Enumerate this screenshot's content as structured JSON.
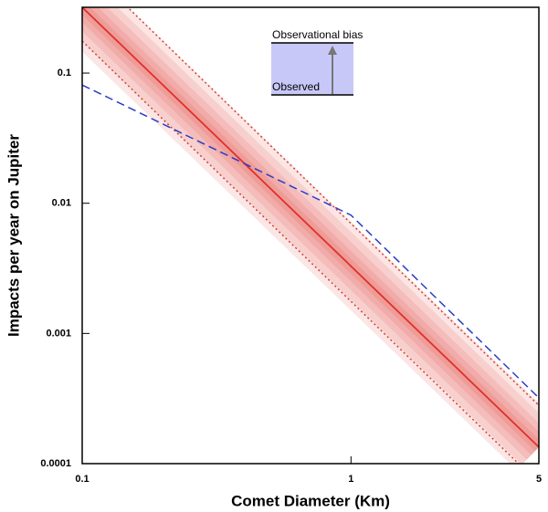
{
  "chart_data": {
    "type": "line",
    "x_label": "Comet Diameter (Km)",
    "y_label": "Impacts per year on Jupiter",
    "log_x": true,
    "log_y": true,
    "xlim": [
      0.1,
      5
    ],
    "xticks": [
      0.1,
      1,
      5
    ],
    "ylim": [
      0.0001,
      0.32
    ],
    "yticks": [
      0.0001,
      0.001,
      0.01,
      0.1
    ],
    "series": [
      {
        "color": "#e0302a",
        "style": "solid",
        "shaded": true,
        "x": [
          0.1,
          5
        ],
        "values": [
          0.32,
          0.000134
        ]
      },
      {
        "color": "#d04030",
        "style": "dotted",
        "x": [
          0.15,
          5
        ],
        "values": [
          0.31,
          0.00028
        ]
      },
      {
        "color": "#d04030",
        "style": "dotted",
        "x": [
          0.1,
          4.2
        ],
        "values": [
          0.176,
          0.0001
        ]
      },
      {
        "color": "#2a3cc8",
        "style": "dashed",
        "x": [
          0.1,
          1,
          5
        ],
        "values": [
          0.081,
          0.0081,
          0.00032
        ]
      }
    ],
    "annotations": [
      "Observational bias",
      "Observed"
    ]
  }
}
